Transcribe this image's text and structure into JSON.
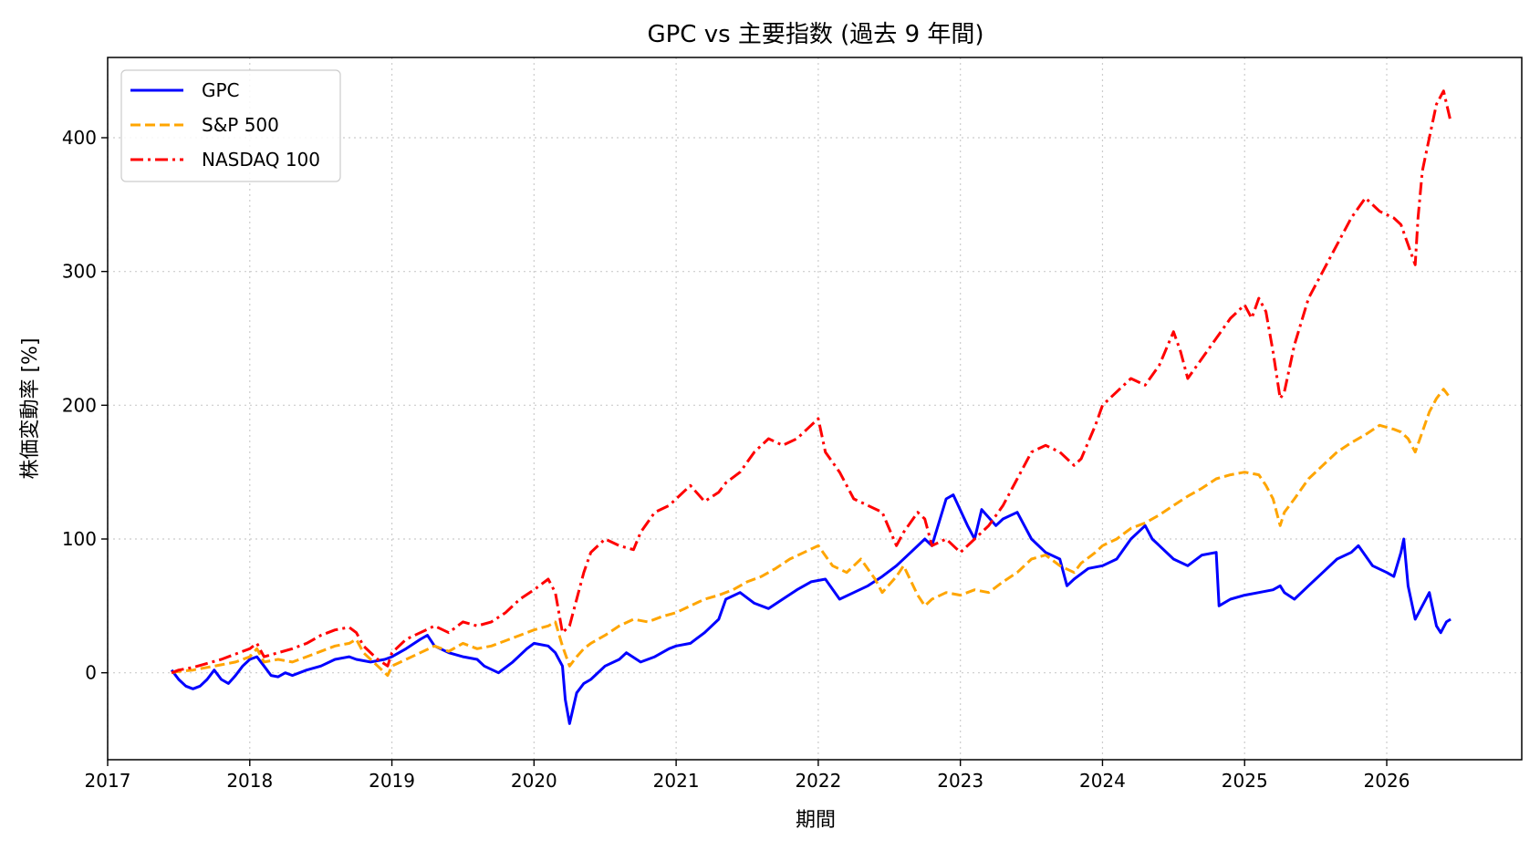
{
  "chart_data": {
    "type": "line",
    "title": "GPC vs 主要指数 (過去 9 年間)",
    "xlabel": "期間",
    "ylabel": "株価変動率 [%]",
    "xlim": [
      2017.0,
      2026.95
    ],
    "ylim": [
      -65,
      460
    ],
    "x_ticks": [
      2017,
      2018,
      2019,
      2020,
      2021,
      2022,
      2023,
      2024,
      2025,
      2026
    ],
    "x_tick_labels": [
      "2017",
      "2018",
      "2019",
      "2020",
      "2021",
      "2022",
      "2023",
      "2024",
      "2025",
      "2026"
    ],
    "y_ticks": [
      0,
      100,
      200,
      300,
      400
    ],
    "y_tick_labels": [
      "0",
      "100",
      "200",
      "300",
      "400"
    ],
    "grid": true,
    "legend_position": "top-left",
    "series": [
      {
        "name": "GPC",
        "color": "#0000ff",
        "style": "solid",
        "x": [
          2017.45,
          2017.5,
          2017.55,
          2017.6,
          2017.65,
          2017.7,
          2017.75,
          2017.8,
          2017.85,
          2017.9,
          2017.95,
          2018.0,
          2018.05,
          2018.1,
          2018.15,
          2018.2,
          2018.25,
          2018.3,
          2018.4,
          2018.5,
          2018.6,
          2018.7,
          2018.75,
          2018.85,
          2018.95,
          2019.0,
          2019.1,
          2019.2,
          2019.25,
          2019.3,
          2019.4,
          2019.5,
          2019.6,
          2019.65,
          2019.75,
          2019.85,
          2019.95,
          2020.0,
          2020.1,
          2020.15,
          2020.2,
          2020.22,
          2020.25,
          2020.3,
          2020.35,
          2020.4,
          2020.5,
          2020.6,
          2020.65,
          2020.75,
          2020.85,
          2020.95,
          2021.0,
          2021.1,
          2021.2,
          2021.3,
          2021.35,
          2021.45,
          2021.55,
          2021.65,
          2021.75,
          2021.85,
          2021.95,
          2022.05,
          2022.15,
          2022.25,
          2022.35,
          2022.45,
          2022.55,
          2022.65,
          2022.75,
          2022.8,
          2022.9,
          2022.95,
          2023.05,
          2023.1,
          2023.15,
          2023.25,
          2023.3,
          2023.4,
          2023.5,
          2023.6,
          2023.7,
          2023.75,
          2023.8,
          2023.9,
          2024.0,
          2024.1,
          2024.2,
          2024.25,
          2024.3,
          2024.35,
          2024.4,
          2024.5,
          2024.6,
          2024.7,
          2024.8,
          2024.82,
          2024.9,
          2025.0,
          2025.1,
          2025.2,
          2025.25,
          2025.28,
          2025.35,
          2025.45,
          2025.55,
          2025.65,
          2025.75,
          2025.8,
          2025.9,
          2026.0,
          2026.05,
          2026.1,
          2026.12,
          2026.15,
          2026.2,
          2026.25,
          2026.3,
          2026.35,
          2026.38,
          2026.42,
          2026.45
        ],
        "values": [
          2,
          -5,
          -10,
          -12,
          -10,
          -5,
          2,
          -5,
          -8,
          -2,
          5,
          10,
          12,
          5,
          -2,
          -3,
          0,
          -2,
          2,
          5,
          10,
          12,
          10,
          8,
          10,
          12,
          18,
          25,
          28,
          20,
          15,
          12,
          10,
          5,
          0,
          8,
          18,
          22,
          20,
          15,
          5,
          -20,
          -38,
          -15,
          -8,
          -5,
          5,
          10,
          15,
          8,
          12,
          18,
          20,
          22,
          30,
          40,
          55,
          60,
          52,
          48,
          55,
          62,
          68,
          70,
          55,
          60,
          65,
          72,
          80,
          90,
          100,
          95,
          130,
          133,
          110,
          100,
          122,
          110,
          115,
          120,
          100,
          90,
          85,
          65,
          70,
          78,
          80,
          85,
          100,
          105,
          110,
          100,
          95,
          85,
          80,
          88,
          90,
          50,
          55,
          58,
          60,
          62,
          65,
          60,
          55,
          65,
          75,
          85,
          90,
          95,
          80,
          75,
          72,
          90,
          100,
          65,
          40,
          50,
          60,
          35,
          30,
          38,
          40
        ]
      },
      {
        "name": "S&P 500",
        "color": "#ffa500",
        "style": "dashed",
        "x": [
          2017.45,
          2017.5,
          2017.6,
          2017.7,
          2017.8,
          2017.9,
          2018.0,
          2018.05,
          2018.1,
          2018.2,
          2018.3,
          2018.4,
          2018.5,
          2018.6,
          2018.7,
          2018.75,
          2018.8,
          2018.9,
          2018.97,
          2019.0,
          2019.1,
          2019.2,
          2019.3,
          2019.4,
          2019.5,
          2019.6,
          2019.7,
          2019.8,
          2019.9,
          2020.0,
          2020.1,
          2020.15,
          2020.2,
          2020.25,
          2020.3,
          2020.35,
          2020.4,
          2020.5,
          2020.6,
          2020.7,
          2020.8,
          2020.9,
          2021.0,
          2021.1,
          2021.2,
          2021.3,
          2021.4,
          2021.5,
          2021.6,
          2021.7,
          2021.8,
          2021.9,
          2022.0,
          2022.1,
          2022.2,
          2022.3,
          2022.4,
          2022.45,
          2022.55,
          2022.6,
          2022.7,
          2022.75,
          2022.8,
          2022.9,
          2023.0,
          2023.1,
          2023.2,
          2023.3,
          2023.4,
          2023.5,
          2023.6,
          2023.7,
          2023.8,
          2023.85,
          2023.95,
          2024.0,
          2024.1,
          2024.2,
          2024.3,
          2024.4,
          2024.5,
          2024.6,
          2024.7,
          2024.8,
          2024.9,
          2025.0,
          2025.1,
          2025.15,
          2025.2,
          2025.25,
          2025.28,
          2025.35,
          2025.45,
          2025.55,
          2025.65,
          2025.75,
          2025.85,
          2025.95,
          2026.05,
          2026.1,
          2026.15,
          2026.2,
          2026.25,
          2026.3,
          2026.35,
          2026.4,
          2026.45
        ],
        "values": [
          0,
          1,
          2,
          4,
          6,
          8,
          12,
          18,
          8,
          10,
          8,
          12,
          16,
          20,
          22,
          25,
          15,
          5,
          -2,
          5,
          10,
          15,
          20,
          16,
          22,
          18,
          20,
          24,
          28,
          32,
          35,
          38,
          20,
          5,
          12,
          18,
          22,
          28,
          35,
          40,
          38,
          42,
          45,
          50,
          55,
          58,
          62,
          68,
          72,
          78,
          85,
          90,
          95,
          80,
          75,
          85,
          70,
          60,
          72,
          80,
          58,
          50,
          55,
          60,
          58,
          62,
          60,
          68,
          75,
          85,
          88,
          80,
          75,
          82,
          90,
          95,
          100,
          108,
          112,
          118,
          125,
          132,
          138,
          145,
          148,
          150,
          148,
          140,
          130,
          110,
          120,
          130,
          145,
          155,
          165,
          172,
          178,
          185,
          182,
          180,
          175,
          165,
          180,
          195,
          205,
          212,
          205
        ]
      },
      {
        "name": "NASDAQ 100",
        "color": "#ff0000",
        "style": "dashdot",
        "x": [
          2017.45,
          2017.5,
          2017.6,
          2017.7,
          2017.8,
          2017.9,
          2018.0,
          2018.05,
          2018.1,
          2018.2,
          2018.3,
          2018.4,
          2018.5,
          2018.6,
          2018.7,
          2018.75,
          2018.8,
          2018.9,
          2018.97,
          2019.0,
          2019.1,
          2019.2,
          2019.3,
          2019.4,
          2019.5,
          2019.6,
          2019.7,
          2019.8,
          2019.9,
          2020.0,
          2020.1,
          2020.15,
          2020.2,
          2020.25,
          2020.3,
          2020.35,
          2020.4,
          2020.5,
          2020.6,
          2020.7,
          2020.75,
          2020.85,
          2020.95,
          2021.0,
          2021.1,
          2021.2,
          2021.3,
          2021.35,
          2021.45,
          2021.55,
          2021.65,
          2021.75,
          2021.85,
          2021.95,
          2022.0,
          2022.05,
          2022.15,
          2022.25,
          2022.35,
          2022.45,
          2022.55,
          2022.6,
          2022.7,
          2022.75,
          2022.8,
          2022.9,
          2023.0,
          2023.1,
          2023.2,
          2023.3,
          2023.4,
          2023.5,
          2023.6,
          2023.7,
          2023.8,
          2023.85,
          2023.95,
          2024.0,
          2024.1,
          2024.2,
          2024.3,
          2024.4,
          2024.5,
          2024.55,
          2024.6,
          2024.7,
          2024.8,
          2024.9,
          2025.0,
          2025.05,
          2025.1,
          2025.15,
          2025.2,
          2025.25,
          2025.28,
          2025.35,
          2025.45,
          2025.55,
          2025.65,
          2025.75,
          2025.85,
          2025.95,
          2026.05,
          2026.1,
          2026.15,
          2026.2,
          2026.22,
          2026.25,
          2026.3,
          2026.35,
          2026.4,
          2026.45
        ],
        "values": [
          0,
          2,
          4,
          7,
          10,
          14,
          18,
          22,
          12,
          15,
          18,
          22,
          28,
          32,
          34,
          30,
          20,
          10,
          5,
          15,
          25,
          30,
          35,
          30,
          38,
          35,
          38,
          45,
          55,
          62,
          70,
          60,
          30,
          35,
          55,
          75,
          90,
          100,
          95,
          92,
          105,
          120,
          125,
          130,
          140,
          128,
          135,
          142,
          150,
          165,
          175,
          170,
          175,
          185,
          190,
          165,
          150,
          130,
          125,
          120,
          95,
          105,
          120,
          115,
          95,
          100,
          90,
          100,
          110,
          125,
          145,
          165,
          170,
          165,
          155,
          160,
          185,
          200,
          210,
          220,
          215,
          230,
          255,
          240,
          220,
          235,
          250,
          265,
          275,
          265,
          280,
          270,
          240,
          205,
          210,
          245,
          280,
          300,
          320,
          340,
          355,
          345,
          340,
          335,
          320,
          305,
          340,
          375,
          400,
          425,
          435,
          412
        ]
      }
    ]
  }
}
